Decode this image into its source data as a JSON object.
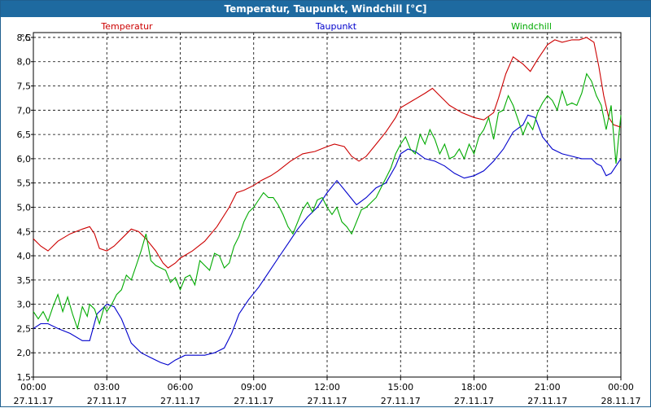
{
  "window": {
    "title": "Temperatur, Taupunkt, Windchill [°C]"
  },
  "colors": {
    "title_bg": "#1e6aa0",
    "temperatur": "#cc0000",
    "taupunkt": "#0000cc",
    "windchill": "#00aa00",
    "grid": "#000000"
  },
  "chart_data": {
    "type": "line",
    "title": "Temperatur, Taupunkt, Windchill [°C]",
    "ylabel": "°C",
    "ylim": [
      1.5,
      8.6
    ],
    "xlim_hours": [
      0,
      24
    ],
    "grid": true,
    "legend": "top",
    "y_ticks": [
      "1,5",
      "2,0",
      "2,5",
      "3,0",
      "3,5",
      "4,0",
      "4,5",
      "5,0",
      "5,5",
      "6,0",
      "6,5",
      "7,0",
      "7,5",
      "8,0",
      "8,5"
    ],
    "x_ticks": [
      {
        "time": "00:00",
        "date": "27.11.17"
      },
      {
        "time": "03:00",
        "date": "27.11.17"
      },
      {
        "time": "06:00",
        "date": "27.11.17"
      },
      {
        "time": "09:00",
        "date": "27.11.17"
      },
      {
        "time": "12:00",
        "date": "27.11.17"
      },
      {
        "time": "15:00",
        "date": "27.11.17"
      },
      {
        "time": "18:00",
        "date": "27.11.17"
      },
      {
        "time": "21:00",
        "date": "27.11.17"
      },
      {
        "time": "00:00",
        "date": "28.11.17"
      }
    ],
    "series": [
      {
        "name": "Temperatur",
        "x": [
          0,
          0.3,
          0.6,
          1.0,
          1.5,
          2.0,
          2.3,
          2.5,
          2.7,
          3.0,
          3.3,
          3.6,
          4.0,
          4.3,
          4.6,
          5.0,
          5.3,
          5.5,
          5.8,
          6.0,
          6.5,
          7.0,
          7.5,
          8.0,
          8.3,
          8.6,
          9.0,
          9.3,
          9.7,
          10.0,
          10.5,
          11.0,
          11.5,
          12.0,
          12.3,
          12.7,
          13.0,
          13.3,
          13.6,
          14.0,
          14.4,
          14.8,
          15.0,
          15.5,
          16.0,
          16.3,
          16.6,
          17.0,
          17.5,
          18.0,
          18.4,
          18.8,
          19.0,
          19.3,
          19.6,
          20.0,
          20.3,
          20.6,
          21.0,
          21.3,
          21.6,
          22.0,
          22.3,
          22.6,
          22.9,
          23.1,
          23.3,
          23.5,
          23.7,
          24.0
        ],
        "values": [
          4.35,
          4.2,
          4.1,
          4.3,
          4.45,
          4.55,
          4.6,
          4.45,
          4.15,
          4.1,
          4.2,
          4.35,
          4.55,
          4.5,
          4.35,
          4.1,
          3.85,
          3.75,
          3.85,
          3.95,
          4.1,
          4.3,
          4.6,
          5.0,
          5.3,
          5.35,
          5.45,
          5.55,
          5.65,
          5.75,
          5.95,
          6.1,
          6.15,
          6.25,
          6.3,
          6.25,
          6.05,
          5.95,
          6.05,
          6.3,
          6.55,
          6.85,
          7.05,
          7.2,
          7.35,
          7.45,
          7.3,
          7.1,
          6.95,
          6.85,
          6.8,
          6.95,
          7.25,
          7.75,
          8.1,
          7.95,
          7.8,
          8.05,
          8.35,
          8.45,
          8.4,
          8.45,
          8.45,
          8.5,
          8.4,
          7.9,
          7.3,
          6.85,
          6.7,
          6.65
        ]
      },
      {
        "name": "Taupunkt",
        "x": [
          0,
          0.3,
          0.6,
          1.0,
          1.5,
          2.0,
          2.3,
          2.6,
          3.0,
          3.3,
          3.6,
          4.0,
          4.4,
          4.8,
          5.2,
          5.5,
          5.8,
          6.2,
          6.6,
          7.0,
          7.4,
          7.8,
          8.1,
          8.4,
          8.8,
          9.2,
          9.6,
          10.0,
          10.4,
          10.8,
          11.2,
          11.6,
          12.0,
          12.4,
          12.8,
          13.2,
          13.6,
          14.0,
          14.4,
          14.8,
          15.0,
          15.3,
          15.6,
          16.0,
          16.4,
          16.8,
          17.2,
          17.6,
          18.0,
          18.4,
          18.8,
          19.2,
          19.6,
          20.0,
          20.2,
          20.5,
          20.8,
          21.2,
          21.6,
          22.0,
          22.4,
          22.8,
          23.0,
          23.2,
          23.4,
          23.6,
          23.8,
          24.0
        ],
        "values": [
          2.5,
          2.6,
          2.6,
          2.5,
          2.4,
          2.25,
          2.25,
          2.8,
          3.0,
          2.95,
          2.7,
          2.2,
          2.0,
          1.9,
          1.8,
          1.75,
          1.85,
          1.95,
          1.95,
          1.95,
          2.0,
          2.1,
          2.4,
          2.8,
          3.1,
          3.35,
          3.65,
          3.95,
          4.25,
          4.55,
          4.8,
          5.0,
          5.3,
          5.55,
          5.3,
          5.05,
          5.2,
          5.4,
          5.5,
          5.85,
          6.1,
          6.2,
          6.15,
          6.0,
          5.95,
          5.85,
          5.7,
          5.6,
          5.65,
          5.75,
          5.95,
          6.2,
          6.55,
          6.7,
          6.9,
          6.85,
          6.45,
          6.2,
          6.1,
          6.05,
          6.0,
          6.0,
          5.9,
          5.85,
          5.65,
          5.7,
          5.85,
          6.0
        ]
      },
      {
        "name": "Windchill",
        "x": [
          0,
          0.2,
          0.4,
          0.6,
          0.8,
          1.0,
          1.2,
          1.4,
          1.6,
          1.8,
          2.0,
          2.2,
          2.3,
          2.5,
          2.7,
          2.9,
          3.0,
          3.2,
          3.4,
          3.6,
          3.8,
          4.0,
          4.2,
          4.4,
          4.6,
          4.8,
          5.0,
          5.2,
          5.4,
          5.6,
          5.8,
          6.0,
          6.2,
          6.4,
          6.6,
          6.8,
          7.0,
          7.2,
          7.4,
          7.6,
          7.8,
          8.0,
          8.2,
          8.4,
          8.6,
          8.8,
          9.0,
          9.2,
          9.4,
          9.6,
          9.8,
          10.0,
          10.2,
          10.4,
          10.6,
          10.8,
          11.0,
          11.2,
          11.4,
          11.6,
          11.8,
          12.0,
          12.2,
          12.4,
          12.6,
          12.8,
          13.0,
          13.2,
          13.4,
          13.6,
          13.8,
          14.0,
          14.2,
          14.4,
          14.6,
          14.8,
          15.0,
          15.2,
          15.4,
          15.6,
          15.8,
          16.0,
          16.2,
          16.4,
          16.6,
          16.8,
          17.0,
          17.2,
          17.4,
          17.6,
          17.8,
          18.0,
          18.2,
          18.4,
          18.6,
          18.8,
          19.0,
          19.2,
          19.4,
          19.6,
          19.8,
          20.0,
          20.2,
          20.4,
          20.6,
          20.8,
          21.0,
          21.2,
          21.4,
          21.6,
          21.8,
          22.0,
          22.2,
          22.4,
          22.6,
          22.8,
          23.0,
          23.2,
          23.4,
          23.6,
          23.8,
          24.0
        ],
        "values": [
          2.85,
          2.7,
          2.85,
          2.65,
          2.95,
          3.2,
          2.85,
          3.15,
          2.8,
          2.5,
          2.95,
          2.75,
          3.0,
          2.9,
          2.6,
          2.95,
          2.85,
          3.0,
          3.2,
          3.3,
          3.6,
          3.5,
          3.8,
          4.1,
          4.45,
          3.9,
          3.8,
          3.75,
          3.7,
          3.45,
          3.55,
          3.3,
          3.55,
          3.6,
          3.4,
          3.9,
          3.8,
          3.7,
          4.05,
          4.0,
          3.75,
          3.85,
          4.2,
          4.4,
          4.7,
          4.9,
          5.0,
          5.15,
          5.3,
          5.2,
          5.2,
          5.05,
          4.85,
          4.6,
          4.45,
          4.7,
          4.95,
          5.1,
          4.9,
          5.15,
          5.2,
          5.0,
          4.85,
          5.0,
          4.7,
          4.6,
          4.45,
          4.7,
          4.95,
          5.0,
          5.1,
          5.2,
          5.4,
          5.6,
          5.8,
          6.1,
          6.3,
          6.45,
          6.2,
          6.1,
          6.5,
          6.3,
          6.6,
          6.4,
          6.1,
          6.3,
          6.0,
          6.05,
          6.2,
          6.0,
          6.3,
          6.1,
          6.45,
          6.6,
          6.85,
          6.4,
          6.95,
          7.0,
          7.3,
          7.1,
          6.8,
          6.5,
          6.75,
          6.6,
          6.95,
          7.15,
          7.3,
          7.2,
          7.0,
          7.4,
          7.1,
          7.15,
          7.1,
          7.35,
          7.75,
          7.6,
          7.3,
          7.1,
          6.6,
          7.1,
          5.9,
          6.9
        ]
      }
    ]
  }
}
